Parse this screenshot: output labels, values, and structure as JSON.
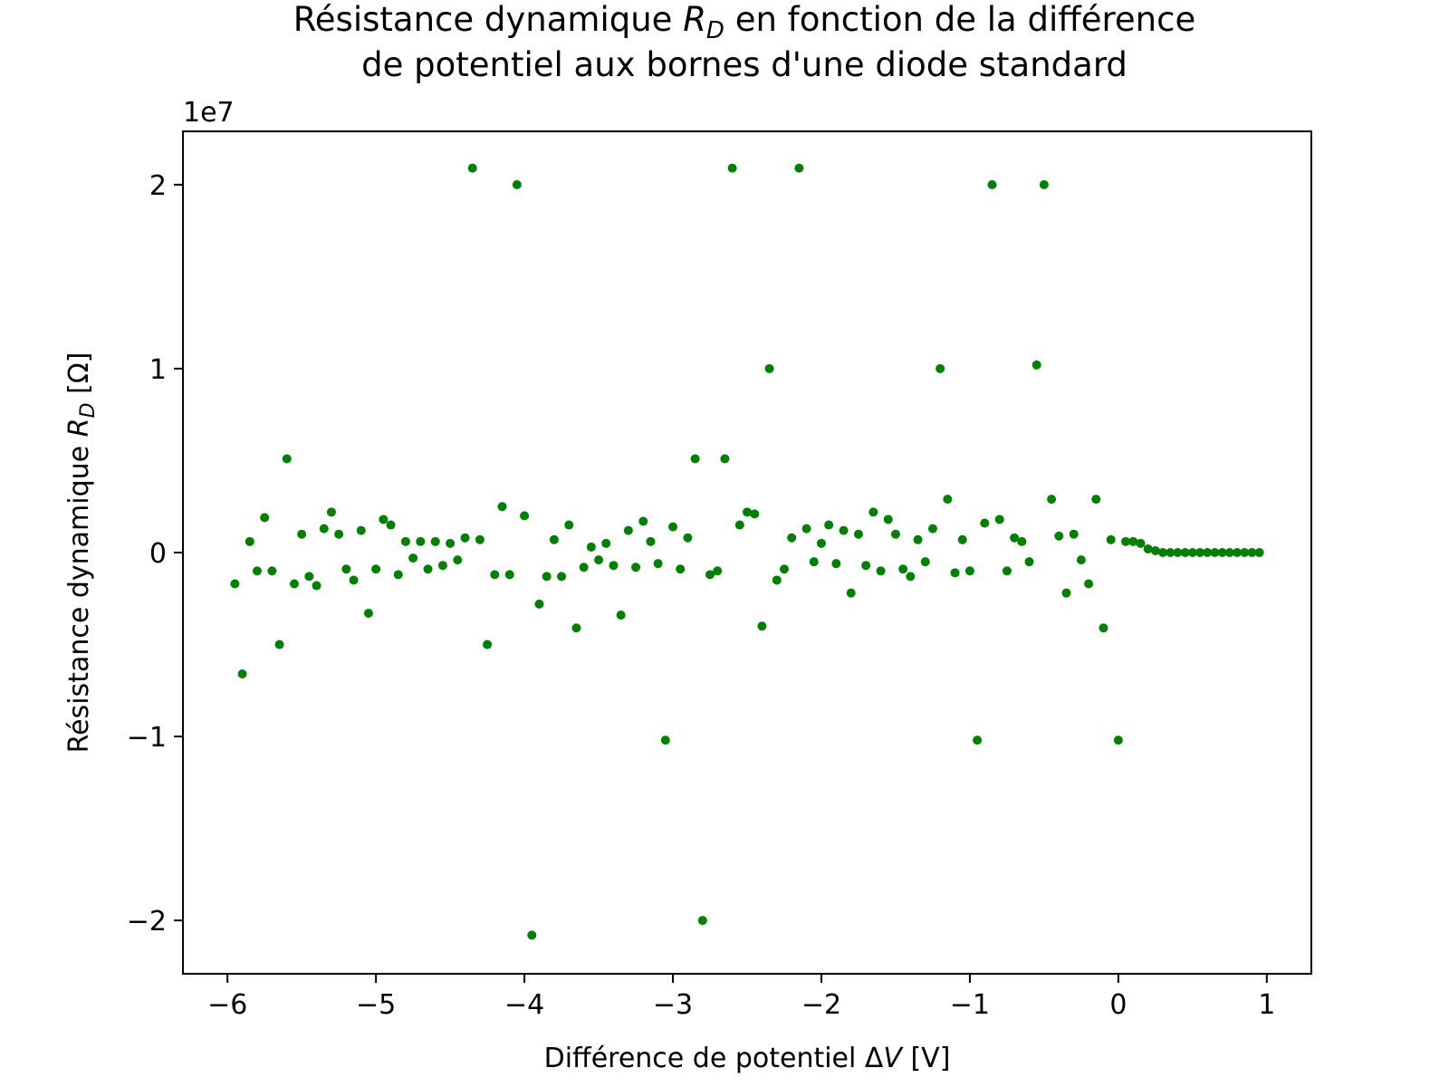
{
  "chart_data": {
    "type": "scatter",
    "title": [
      "Résistance dynamique RD en fonction de la différence",
      "de potentiel aux bornes d'une diode standard"
    ],
    "title_rich": {
      "line1_before": "Résistance dynamique ",
      "line1_var": "R",
      "line1_sub": "D",
      "line1_after": " en fonction de la différence",
      "line2": "de potentiel aux bornes d'une diode standard"
    },
    "xlabel": "Différence de potentiel ΔV [V]",
    "xlabel_rich": {
      "before": "Différence de potentiel Δ",
      "var": "V",
      "after": " [V]"
    },
    "ylabel": "Résistance dynamique RD [Ω]",
    "ylabel_rich": {
      "before": "Résistance dynamique ",
      "var": "R",
      "sub": "D",
      "after": " [Ω]"
    },
    "y_offset_label": "1e7",
    "xlim": [
      -6.3,
      1.3
    ],
    "ylim": [
      -2.29,
      2.29
    ],
    "x_ticks": [
      -6,
      -5,
      -4,
      -3,
      -2,
      -1,
      0,
      1
    ],
    "x_tick_labels": [
      "−6",
      "−5",
      "−4",
      "−3",
      "−2",
      "−1",
      "0",
      "1"
    ],
    "y_ticks": [
      -2,
      -1,
      0,
      1,
      2
    ],
    "y_tick_labels": [
      "−2",
      "−1",
      "0",
      "1",
      "2"
    ],
    "grid": false,
    "legend": "none",
    "marker_color": "#008000",
    "series": [
      {
        "x": [
          -5.95,
          -5.9,
          -5.85,
          -5.8,
          -5.75,
          -5.7,
          -5.65,
          -5.6,
          -5.55,
          -5.5,
          -5.45,
          -5.4,
          -5.35,
          -5.3,
          -5.25,
          -5.2,
          -5.15,
          -5.1,
          -5.05,
          -5.0,
          -4.95,
          -4.9,
          -4.85,
          -4.8,
          -4.75,
          -4.7,
          -4.65,
          -4.6,
          -4.55,
          -4.5,
          -4.45,
          -4.4,
          -4.35,
          -4.3,
          -4.25,
          -4.2,
          -4.15,
          -4.1,
          -4.05,
          -4.0,
          -3.95,
          -3.9,
          -3.85,
          -3.8,
          -3.75,
          -3.7,
          -3.65,
          -3.6,
          -3.55,
          -3.5,
          -3.45,
          -3.4,
          -3.35,
          -3.3,
          -3.25,
          -3.2,
          -3.15,
          -3.1,
          -3.05,
          -3.0,
          -2.95,
          -2.9,
          -2.85,
          -2.8,
          -2.75,
          -2.7,
          -2.65,
          -2.6,
          -2.55,
          -2.5,
          -2.45,
          -2.4,
          -2.35,
          -2.3,
          -2.25,
          -2.2,
          -2.15,
          -2.1,
          -2.05,
          -2.0,
          -1.95,
          -1.9,
          -1.85,
          -1.8,
          -1.75,
          -1.7,
          -1.65,
          -1.6,
          -1.55,
          -1.5,
          -1.45,
          -1.4,
          -1.35,
          -1.3,
          -1.25,
          -1.2,
          -1.15,
          -1.1,
          -1.05,
          -1.0,
          -0.95,
          -0.9,
          -0.85,
          -0.8,
          -0.75,
          -0.7,
          -0.65,
          -0.6,
          -0.55,
          -0.5,
          -0.45,
          -0.4,
          -0.35,
          -0.3,
          -0.25,
          -0.2,
          -0.15,
          -0.1,
          -0.05,
          0.0,
          0.05,
          0.1,
          0.15,
          0.2,
          0.25,
          0.3,
          0.35,
          0.4,
          0.45,
          0.5,
          0.55,
          0.6,
          0.65,
          0.7,
          0.75,
          0.8,
          0.85,
          0.9,
          0.95
        ],
        "y": [
          -0.17,
          -0.66,
          0.06,
          -0.1,
          0.19,
          -0.1,
          -0.5,
          0.51,
          -0.17,
          0.1,
          -0.13,
          -0.18,
          0.13,
          0.22,
          0.1,
          -0.09,
          -0.15,
          0.12,
          -0.33,
          -0.09,
          0.18,
          0.15,
          -0.12,
          0.06,
          -0.03,
          0.06,
          -0.09,
          0.06,
          -0.07,
          0.05,
          -0.04,
          0.08,
          2.09,
          0.07,
          -0.5,
          -0.12,
          0.25,
          -0.12,
          2.0,
          0.2,
          -2.08,
          -0.28,
          -0.13,
          0.07,
          -0.13,
          0.15,
          -0.41,
          -0.08,
          0.03,
          -0.04,
          0.05,
          -0.07,
          -0.34,
          0.12,
          -0.08,
          0.17,
          0.06,
          -0.06,
          -1.02,
          0.14,
          -0.09,
          0.08,
          0.51,
          -2.0,
          -0.12,
          -0.1,
          0.51,
          2.09,
          0.15,
          0.22,
          0.21,
          -0.4,
          1.0,
          -0.15,
          -0.09,
          0.08,
          2.09,
          0.13,
          -0.05,
          0.05,
          0.15,
          -0.06,
          0.12,
          -0.22,
          0.1,
          -0.07,
          0.22,
          -0.1,
          0.18,
          0.1,
          -0.09,
          -0.13,
          0.07,
          -0.05,
          0.13,
          1.0,
          0.29,
          -0.11,
          0.07,
          -0.1,
          -1.02,
          0.16,
          2.0,
          0.18,
          -0.1,
          0.08,
          0.06,
          -0.05,
          1.02,
          2.0,
          0.29,
          0.09,
          -0.22,
          0.1,
          -0.04,
          -0.17,
          0.29,
          -0.41,
          0.07,
          -1.02,
          0.06,
          0.06,
          0.05,
          0.02,
          0.01,
          0.0,
          0.0,
          0.0,
          0.0,
          0.0,
          0.0,
          0.0,
          0.0,
          0.0,
          0.0,
          0.0,
          0.0,
          0.0,
          0.0
        ]
      }
    ]
  }
}
